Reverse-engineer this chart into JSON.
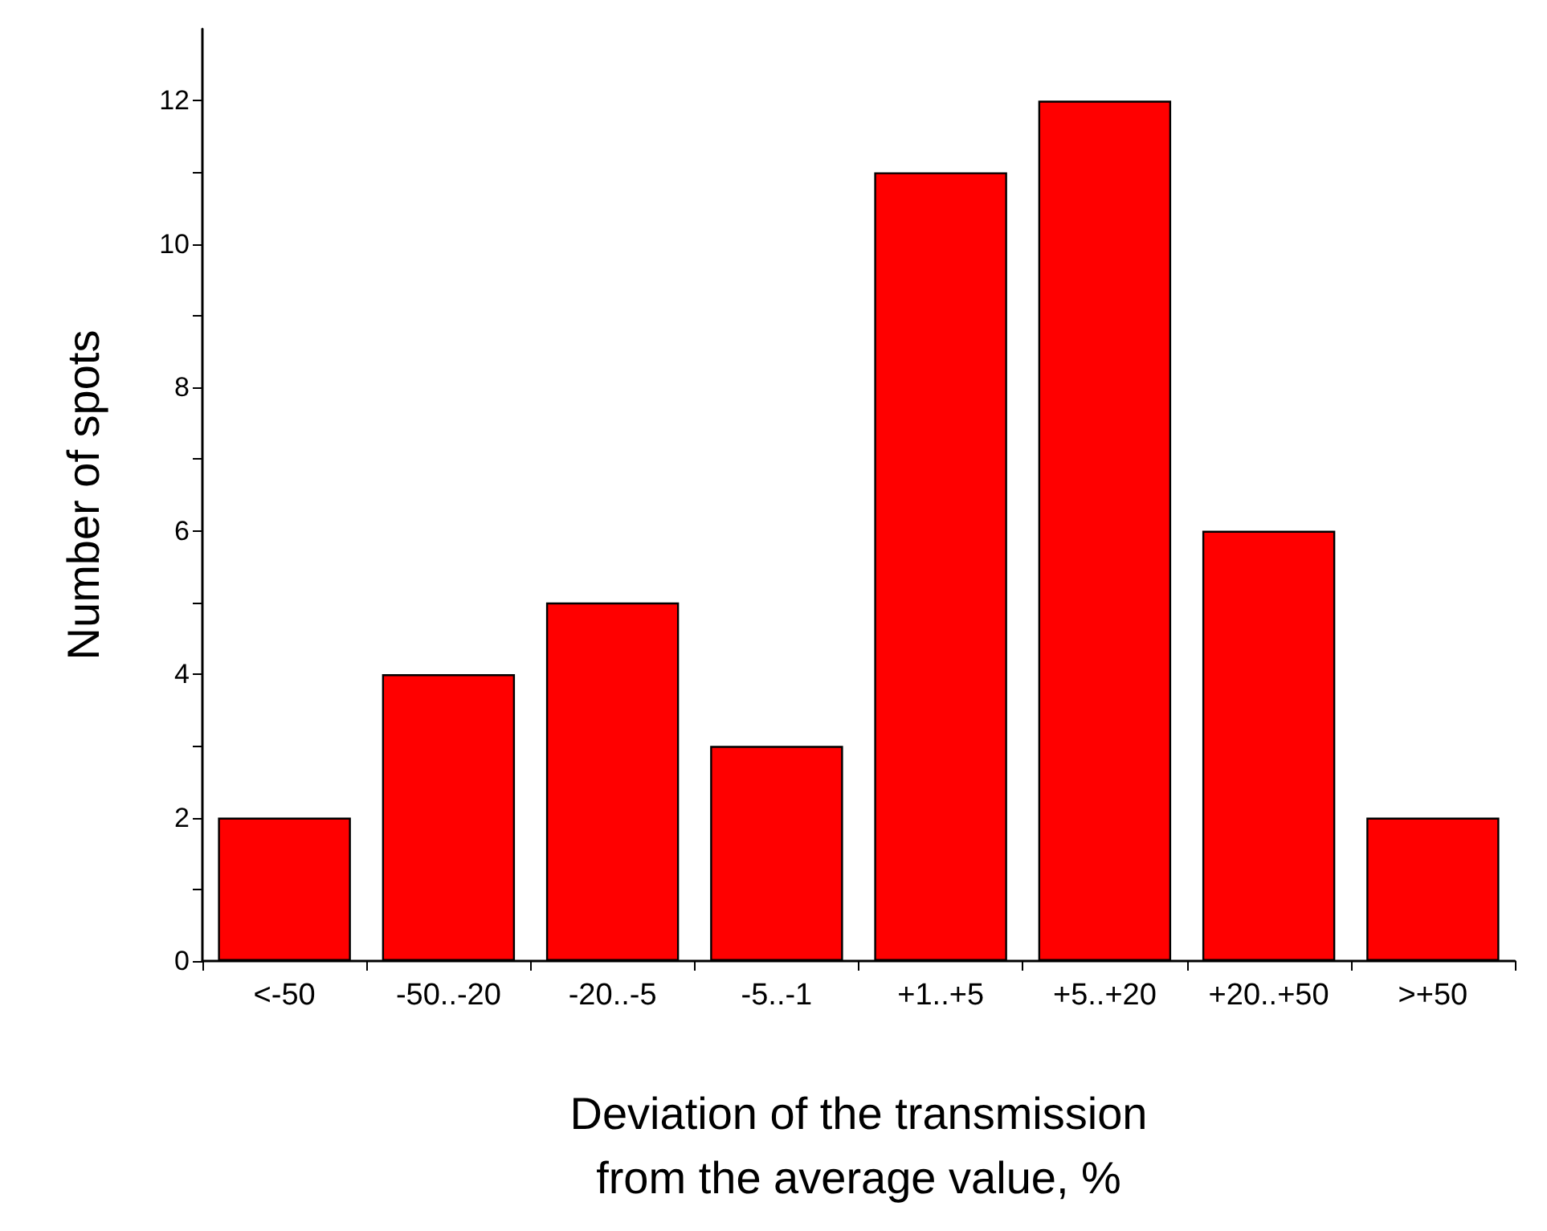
{
  "chart_data": {
    "type": "bar",
    "xlabel": "Deviation of the transmission\nfrom the average value, %",
    "ylabel": "Number of spots",
    "categories": [
      "<-50",
      "-50..-20",
      "-20..-5",
      "-5..-1",
      "+1..+5",
      "+5..+20",
      "+20..+50",
      ">+50"
    ],
    "values": [
      2,
      4,
      5,
      3,
      11,
      12,
      6,
      2
    ],
    "color": "#ff0000",
    "ylim": [
      0,
      13
    ],
    "yticks": [
      0,
      {
        "value": 1,
        "label": null
      },
      2,
      {
        "value": 3,
        "label": null
      },
      4,
      {
        "value": 5,
        "label": null
      },
      6,
      {
        "value": 7,
        "label": null
      },
      8,
      {
        "value": 9,
        "label": null
      },
      10,
      {
        "value": 11,
        "label": null
      },
      12
    ],
    "grid": false
  }
}
